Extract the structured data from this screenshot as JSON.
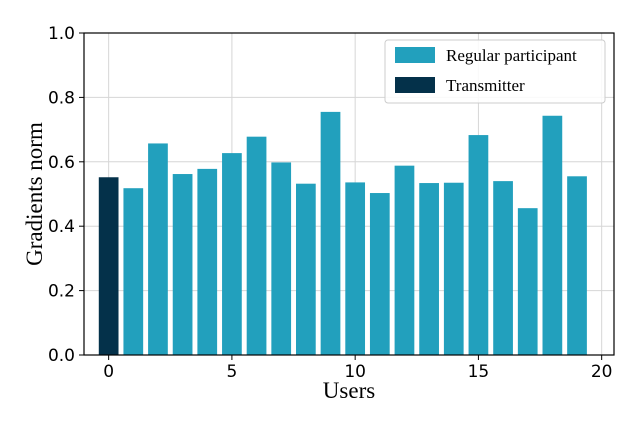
{
  "chart_data": {
    "type": "bar",
    "xlabel": "Users",
    "ylabel": "Gradients norm",
    "x": [
      0,
      1,
      2,
      3,
      4,
      5,
      6,
      7,
      8,
      9,
      10,
      11,
      12,
      13,
      14,
      15,
      16,
      17,
      18,
      19
    ],
    "values": [
      0.552,
      0.518,
      0.657,
      0.562,
      0.578,
      0.627,
      0.678,
      0.598,
      0.532,
      0.755,
      0.536,
      0.503,
      0.588,
      0.534,
      0.535,
      0.683,
      0.54,
      0.456,
      0.743,
      0.555
    ],
    "series": [
      {
        "name": "Regular participant",
        "color": "#22a0bd",
        "indices": [
          1,
          2,
          3,
          4,
          5,
          6,
          7,
          8,
          9,
          10,
          11,
          12,
          13,
          14,
          15,
          16,
          17,
          18,
          19
        ]
      },
      {
        "name": "Transmitter",
        "color": "#04314a",
        "indices": [
          0
        ]
      }
    ],
    "xlim": [
      -1,
      20.5
    ],
    "ylim": [
      0,
      1.0
    ],
    "xticks": [
      0,
      5,
      10,
      15,
      20
    ],
    "yticks": [
      0.0,
      0.2,
      0.4,
      0.6,
      0.8,
      1.0
    ],
    "ytick_labels": [
      "0.0",
      "0.2",
      "0.4",
      "0.6",
      "0.8",
      "1.0"
    ],
    "grid": true,
    "legend_position": "top-right"
  }
}
